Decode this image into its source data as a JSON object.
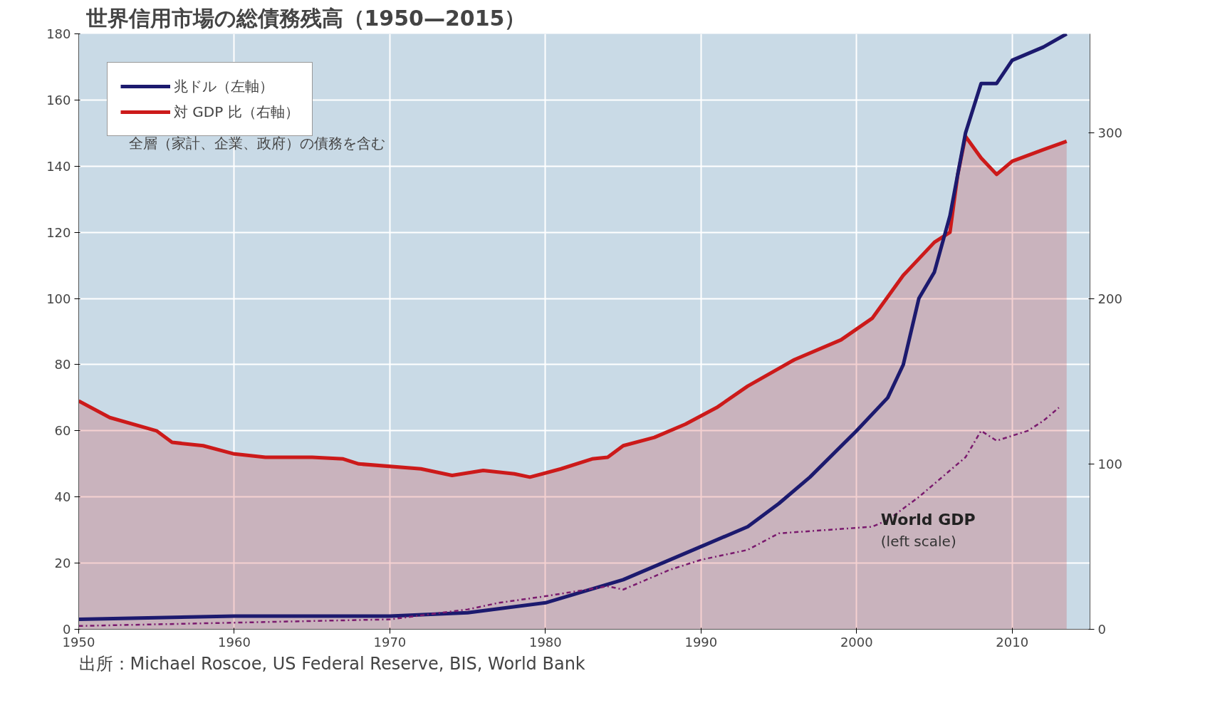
{
  "chart_data": {
    "type": "line",
    "title": "世界信用市場の総債務残高（1950—2015）",
    "xlim": [
      1950,
      2015
    ],
    "xticks": [
      1950,
      1960,
      1970,
      1980,
      1990,
      2000,
      2010
    ],
    "ylim": [
      0,
      180
    ],
    "yticks": [
      0,
      20,
      40,
      60,
      80,
      100,
      120,
      140,
      160,
      180
    ],
    "y2lim": [
      0,
      360
    ],
    "y2ticks": [
      0,
      100,
      200,
      300
    ],
    "grid": true,
    "legend": "top left",
    "series": [
      {
        "name": "対 GDP 比（右軸）",
        "type": "area",
        "axis": "y2",
        "color": "#cc1a1a",
        "x": [
          1950,
          1952,
          1955,
          1956,
          1958,
          1960,
          1962,
          1965,
          1967,
          1968,
          1972,
          1974,
          1976,
          1978,
          1979,
          1981,
          1983,
          1984,
          1985,
          1987,
          1989,
          1991,
          1993,
          1996,
          1999,
          2001,
          2003,
          2005,
          2006,
          2006.5,
          2007,
          2008,
          2009,
          2010,
          2012,
          2013.5
        ],
        "values": [
          138,
          128,
          120,
          113,
          111,
          106,
          104,
          104,
          103,
          100,
          97,
          93,
          96,
          94,
          92,
          97,
          103,
          104,
          111,
          116,
          124,
          134,
          147,
          163,
          175,
          188,
          214,
          234,
          240,
          275,
          298,
          285,
          275,
          283,
          290,
          295
        ]
      },
      {
        "name": "兆ドル（左軸）",
        "color": "#1c1a6e",
        "x": [
          1950,
          1960,
          1970,
          1975,
          1980,
          1985,
          1990,
          1993,
          1995,
          1997,
          2000,
          2002,
          2003,
          2004,
          2005,
          2006,
          2007,
          2008,
          2009,
          2010,
          2012,
          2013.5
        ],
        "values": [
          3,
          4,
          4,
          5,
          8,
          15,
          25,
          31,
          38,
          46,
          60,
          70,
          80,
          100,
          108,
          125,
          150,
          165,
          165,
          172,
          176,
          180
        ]
      },
      {
        "name": "World GDP",
        "line_style": "dashdot",
        "color": "#7a1a6e",
        "x": [
          1950,
          1960,
          1970,
          1975,
          1977,
          1980,
          1984,
          1985,
          1988,
          1990,
          1993,
          1995,
          1998,
          2001,
          2002,
          2004,
          2006,
          2007,
          2008,
          2009,
          2011,
          2012,
          2013
        ],
        "values": [
          1,
          2,
          3,
          6,
          8,
          10,
          13,
          12,
          18,
          21,
          24,
          29,
          30,
          31,
          33,
          40,
          48,
          52,
          60,
          57,
          60,
          63,
          67
        ]
      }
    ],
    "annotations": [
      "全層（家計、企業、政府）の債務を含む",
      "(left scale)",
      "出所：Michael Roscoe, US Federal Reserve, BIS, World Bank"
    ]
  }
}
